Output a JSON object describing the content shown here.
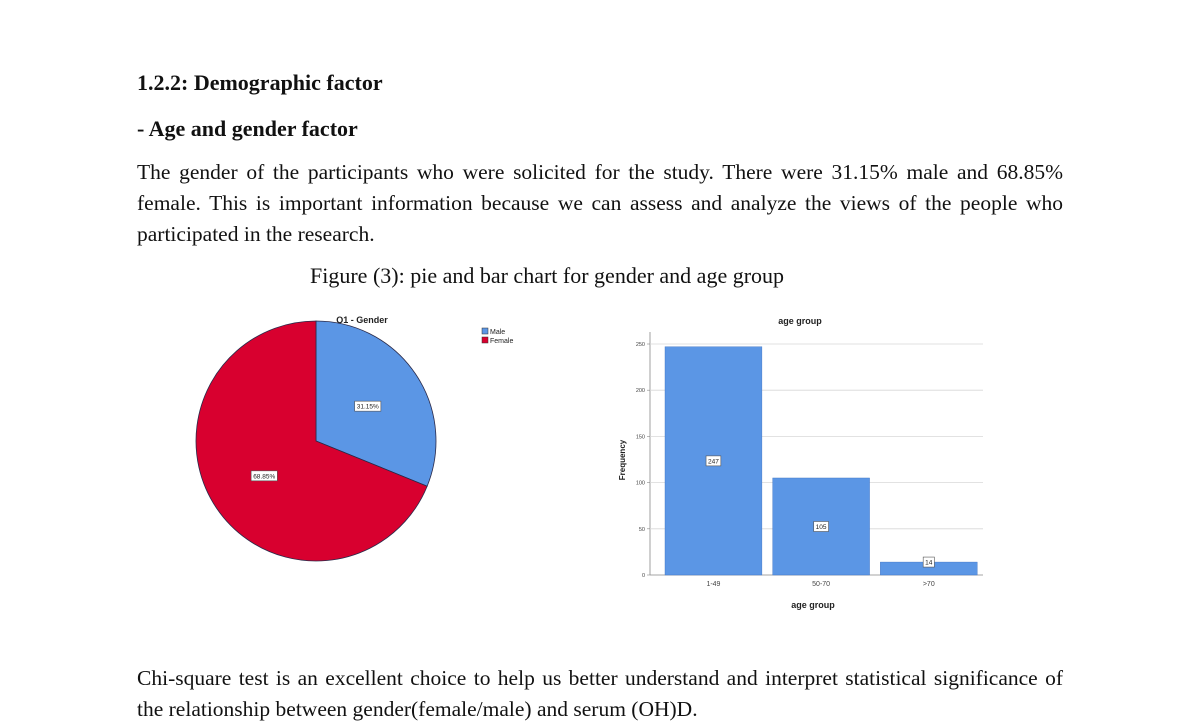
{
  "section_heading": "1.2.2: Demographic factor",
  "subheading": "- Age and gender factor",
  "intro_paragraph": "The gender of the participants who were solicited for the study. There were 31.15% male and 68.85% female. This is important information because we can assess and analyze the views of the people who participated in the research.",
  "figure_caption": "Figure (3): pie and bar chart for gender and age group",
  "closing_paragraph": "Chi-square test is an excellent choice to help us better understand and interpret statistical significance of the relationship between gender(female/male) and serum (OH)D.",
  "chart_data": [
    {
      "type": "pie",
      "title": "Q1 - Gender",
      "categories": [
        "Male",
        "Female"
      ],
      "values": [
        31.15,
        68.85
      ],
      "data_labels": [
        "31.15%",
        "68.85%"
      ],
      "colors": [
        "#5b96e5",
        "#d8002f"
      ],
      "legend": "top-right"
    },
    {
      "type": "bar",
      "title": "age group",
      "xlabel": "age group",
      "ylabel": "Frequency",
      "categories": [
        "1-49",
        "50-70",
        ">70"
      ],
      "values": [
        247,
        105,
        14
      ],
      "ylim": [
        0,
        250
      ],
      "yticks": [
        "0",
        "50",
        "100",
        "150",
        "200",
        "250"
      ],
      "grid": true,
      "color": "#5b96e5"
    }
  ]
}
